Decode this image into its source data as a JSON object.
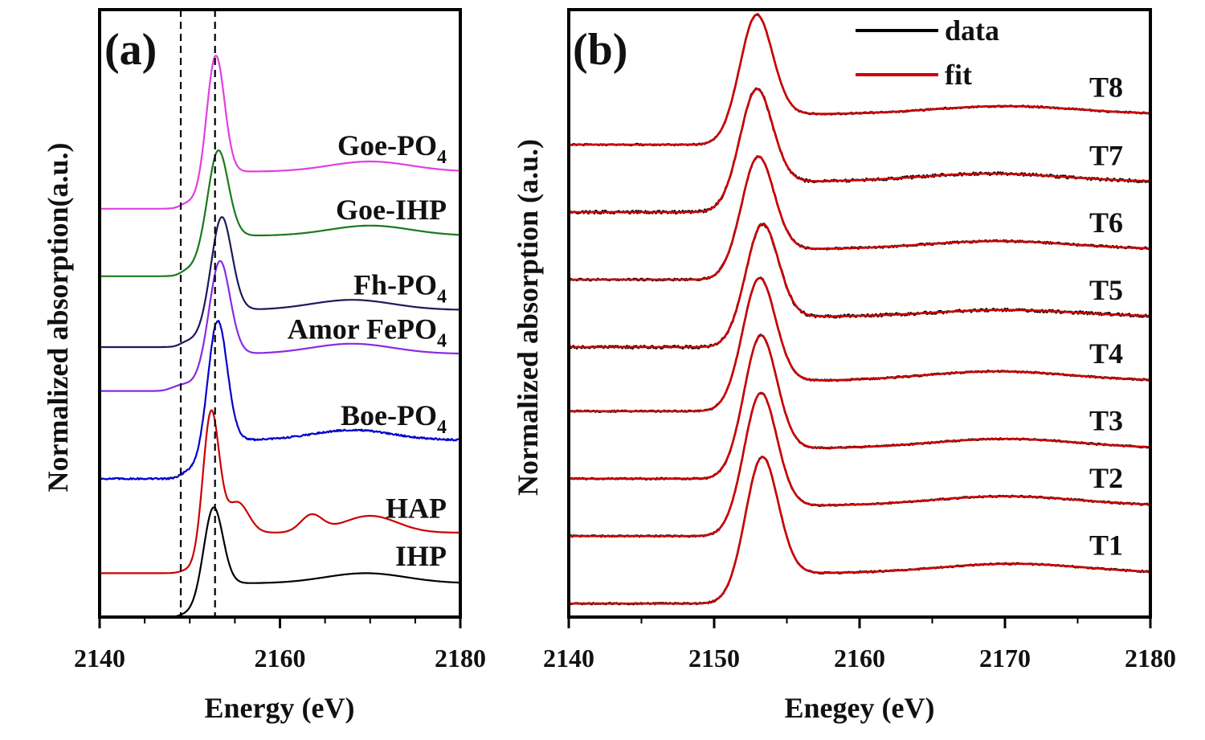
{
  "chart_data": [
    {
      "type": "line",
      "panel_label": "(a)",
      "xlabel": "Energy (eV)",
      "ylabel": "Normalized absorption(a.u.)",
      "xlim": [
        2140,
        2180
      ],
      "ylim": [
        0,
        9
      ],
      "xticks": [
        2140,
        2160,
        2180
      ],
      "xtick_labels": [
        "2140",
        "2160",
        "2180"
      ],
      "y_ticks_shown": false,
      "reference_lines": [
        {
          "x": 2149.0,
          "style": "dashed"
        },
        {
          "x": 2152.8,
          "style": "dashed"
        }
      ],
      "series": [
        {
          "name": "IHP",
          "label_main": "IHP",
          "label_sub": "",
          "color": "#000000",
          "baseline": 0.0,
          "pre_step": 0.05,
          "peak_center": 2152.5,
          "peak_width": 1.1,
          "peak_height": 1.25,
          "post_edge": 0.45,
          "features": [
            {
              "center": 2169.5,
              "width": 4.5,
              "height": 0.15
            }
          ],
          "noise": 0.0
        },
        {
          "name": "HAP",
          "label_main": "HAP",
          "label_sub": "",
          "color": "#cc0000",
          "baseline": 0.65,
          "pre_step": 0.05,
          "peak_center": 2152.3,
          "peak_width": 0.9,
          "peak_height": 1.95,
          "post_edge": 0.55,
          "features": [
            {
              "center": 2155.3,
              "width": 1.2,
              "height": 0.45
            },
            {
              "center": 2163.5,
              "width": 1.2,
              "height": 0.25
            },
            {
              "center": 2170.0,
              "width": 3.0,
              "height": 0.25
            }
          ],
          "noise": 0.0
        },
        {
          "name": "Boe-PO4",
          "label_main": "Boe-PO",
          "label_sub": "4",
          "color": "#0000cc",
          "baseline": 2.05,
          "pre_step": 0.12,
          "peak_center": 2153.0,
          "peak_width": 1.1,
          "peak_height": 1.9,
          "post_edge": 0.45,
          "features": [
            {
              "center": 2168.0,
              "width": 4.5,
              "height": 0.15
            }
          ],
          "noise": 0.012
        },
        {
          "name": "Amor FePO4",
          "label_main": "Amor FePO",
          "label_sub": "4",
          "color": "#8a2be2",
          "baseline": 3.35,
          "pre_step": 0.1,
          "peak_center": 2153.2,
          "peak_width": 1.2,
          "peak_height": 1.5,
          "post_edge": 0.45,
          "features": [
            {
              "center": 2148.5,
              "width": 0.8,
              "height": 0.05
            },
            {
              "center": 2168.0,
              "width": 4.5,
              "height": 0.15
            }
          ],
          "noise": 0.0
        },
        {
          "name": "Fh-PO4",
          "label_main": "Fh-PO",
          "label_sub": "4",
          "color": "#1a1a5e",
          "baseline": 4.0,
          "pre_step": 0.1,
          "peak_center": 2153.4,
          "peak_width": 1.2,
          "peak_height": 1.5,
          "post_edge": 0.45,
          "features": [
            {
              "center": 2168.0,
              "width": 4.5,
              "height": 0.15
            }
          ],
          "noise": 0.0
        },
        {
          "name": "Goe-IHP",
          "label_main": "Goe-IHP",
          "label_sub": "",
          "color": "#1a7a1a",
          "baseline": 5.05,
          "pre_step": 0.1,
          "peak_center": 2153.0,
          "peak_width": 1.2,
          "peak_height": 1.4,
          "post_edge": 0.5,
          "features": [
            {
              "center": 2170.0,
              "width": 4.5,
              "height": 0.15
            }
          ],
          "noise": 0.0
        },
        {
          "name": "Goe-PO4",
          "label_main": "Goe-PO",
          "label_sub": "4",
          "color": "#e040e0",
          "baseline": 6.05,
          "pre_step": 0.1,
          "peak_center": 2152.8,
          "peak_width": 1.0,
          "peak_height": 1.85,
          "post_edge": 0.45,
          "features": [
            {
              "center": 2170.0,
              "width": 4.5,
              "height": 0.15
            }
          ],
          "noise": 0.0
        }
      ]
    },
    {
      "type": "line",
      "panel_label": "(b)",
      "xlabel": "Enegey (eV)",
      "ylabel": "Normalized absorption (a.u.)",
      "xlim": [
        2140,
        2180
      ],
      "ylim": [
        0,
        9
      ],
      "xticks": [
        2140,
        2150,
        2160,
        2170,
        2180
      ],
      "xtick_labels": [
        "2140",
        "2150",
        "2160",
        "2170",
        "2180"
      ],
      "y_ticks_shown": false,
      "legend": [
        {
          "name": "data",
          "color": "#000000"
        },
        {
          "name": "fit",
          "color": "#cc0000"
        }
      ],
      "series": [
        {
          "name": "T1",
          "baseline": 0.2,
          "peak_center": 2153.2,
          "peak_width": 1.15,
          "peak_height": 1.85,
          "post_edge": 0.45,
          "feature_center": 2170.5,
          "feature_height": 0.14,
          "noise": 0.012
        },
        {
          "name": "T2",
          "baseline": 1.2,
          "peak_center": 2153.1,
          "peak_width": 1.15,
          "peak_height": 1.8,
          "post_edge": 0.45,
          "feature_center": 2170.0,
          "feature_height": 0.14,
          "noise": 0.012
        },
        {
          "name": "T3",
          "baseline": 2.05,
          "peak_center": 2153.1,
          "peak_width": 1.15,
          "peak_height": 1.8,
          "post_edge": 0.45,
          "feature_center": 2170.0,
          "feature_height": 0.14,
          "noise": 0.012
        },
        {
          "name": "T4",
          "baseline": 3.05,
          "peak_center": 2153.0,
          "peak_width": 1.15,
          "peak_height": 1.65,
          "post_edge": 0.45,
          "feature_center": 2169.5,
          "feature_height": 0.14,
          "noise": 0.012
        },
        {
          "name": "T5",
          "baseline": 4.0,
          "peak_center": 2153.2,
          "peak_width": 1.15,
          "peak_height": 1.5,
          "post_edge": 0.45,
          "feature_center": 2170.0,
          "feature_height": 0.1,
          "noise": 0.022
        },
        {
          "name": "T6",
          "baseline": 5.0,
          "peak_center": 2152.9,
          "peak_width": 1.15,
          "peak_height": 1.5,
          "post_edge": 0.45,
          "feature_center": 2169.5,
          "feature_height": 0.12,
          "noise": 0.015
        },
        {
          "name": "T7",
          "baseline": 6.0,
          "peak_center": 2152.8,
          "peak_width": 1.15,
          "peak_height": 1.5,
          "post_edge": 0.45,
          "feature_center": 2169.0,
          "feature_height": 0.12,
          "noise": 0.022
        },
        {
          "name": "T8",
          "baseline": 7.0,
          "peak_center": 2152.8,
          "peak_width": 1.15,
          "peak_height": 1.6,
          "post_edge": 0.45,
          "feature_center": 2170.0,
          "feature_height": 0.12,
          "noise": 0.012
        }
      ]
    }
  ]
}
